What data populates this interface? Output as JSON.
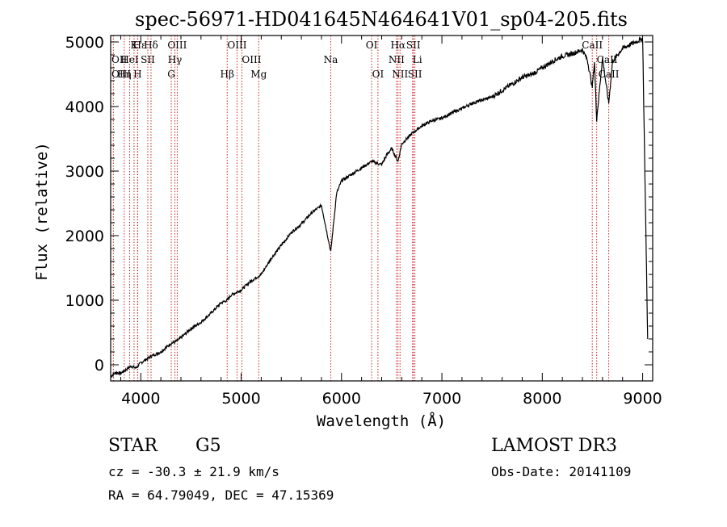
{
  "chart_data": {
    "type": "line",
    "title": "spec-56971-HD041645N464641V01_sp04-205.fits",
    "xlabel": "Wavelength (Å)",
    "ylabel": "Flux (relative)",
    "xlim": [
      3700,
      9100
    ],
    "ylim": [
      -250,
      5100
    ],
    "xticks": [
      4000,
      5000,
      6000,
      7000,
      8000,
      9000
    ],
    "yticks": [
      0,
      1000,
      2000,
      3000,
      4000,
      5000
    ],
    "series": [
      {
        "name": "flux",
        "x": [
          3700,
          3750,
          3800,
          3850,
          3900,
          3950,
          4000,
          4100,
          4200,
          4300,
          4350,
          4400,
          4500,
          4600,
          4700,
          4800,
          4861,
          4900,
          5000,
          5100,
          5200,
          5300,
          5400,
          5500,
          5600,
          5700,
          5800,
          5893,
          5950,
          6000,
          6100,
          6200,
          6300,
          6400,
          6450,
          6500,
          6563,
          6600,
          6700,
          6800,
          6900,
          7000,
          7100,
          7200,
          7300,
          7400,
          7500,
          7600,
          7700,
          7800,
          7900,
          8000,
          8100,
          8200,
          8300,
          8400,
          8450,
          8498,
          8520,
          8542,
          8600,
          8662,
          8700,
          8800,
          8900,
          9000,
          9050
        ],
        "y": [
          -180,
          -120,
          -130,
          -80,
          -20,
          -50,
          30,
          130,
          200,
          330,
          360,
          420,
          560,
          660,
          800,
          960,
          1000,
          1080,
          1160,
          1300,
          1400,
          1650,
          1850,
          2050,
          2180,
          2350,
          2470,
          1750,
          2650,
          2850,
          2950,
          3050,
          3150,
          3100,
          3250,
          3350,
          3150,
          3420,
          3580,
          3700,
          3780,
          3820,
          3900,
          3970,
          4050,
          4100,
          4150,
          4250,
          4350,
          4450,
          4500,
          4600,
          4700,
          4780,
          4820,
          4880,
          4720,
          4300,
          4700,
          3800,
          4750,
          4050,
          4700,
          4900,
          4980,
          5050,
          400
        ]
      }
    ],
    "lines": [
      {
        "name": "Hε",
        "x": 3970,
        "row": 1,
        "pos": "left"
      },
      {
        "name": "K",
        "x": 3933,
        "row": 1,
        "pos": "center"
      },
      {
        "name": "Hδ",
        "x": 4102,
        "row": 1,
        "pos": "center"
      },
      {
        "name": "OIII",
        "x": 4363,
        "row": 1,
        "pos": "center"
      },
      {
        "name": "OIII",
        "x": 4959,
        "row": 1,
        "pos": "center"
      },
      {
        "name": "OI",
        "x": 6300,
        "row": 1,
        "pos": "center"
      },
      {
        "name": "Hα",
        "x": 6563,
        "row": 1,
        "pos": "center"
      },
      {
        "name": "SII",
        "x": 6716,
        "row": 1,
        "pos": "center"
      },
      {
        "name": "CaII",
        "x": 8498,
        "row": 1,
        "pos": "center"
      },
      {
        "name": "OII",
        "x": 3727,
        "row": 2,
        "pos": "left"
      },
      {
        "name": "HeI",
        "x": 3889,
        "row": 2,
        "pos": "center"
      },
      {
        "name": "SII",
        "x": 4070,
        "row": 2,
        "pos": "center"
      },
      {
        "name": "Hγ",
        "x": 4340,
        "row": 2,
        "pos": "center"
      },
      {
        "name": "OIII",
        "x": 5007,
        "row": 2,
        "pos": "right"
      },
      {
        "name": "Na",
        "x": 5893,
        "row": 2,
        "pos": "center"
      },
      {
        "name": "NII",
        "x": 6548,
        "row": 2,
        "pos": "center"
      },
      {
        "name": "Li",
        "x": 6708,
        "row": 2,
        "pos": "right"
      },
      {
        "name": "CaII",
        "x": 8542,
        "row": 2,
        "pos": "right"
      },
      {
        "name": "OIII",
        "x": 3727,
        "row": 3,
        "pos": "left"
      },
      {
        "name": "Hη",
        "x": 3835,
        "row": 3,
        "pos": "center"
      },
      {
        "name": "H",
        "x": 3968,
        "row": 3,
        "pos": "center"
      },
      {
        "name": "G",
        "x": 4304,
        "row": 3,
        "pos": "center"
      },
      {
        "name": "Hβ",
        "x": 4861,
        "row": 3,
        "pos": "center"
      },
      {
        "name": "Mg",
        "x": 5175,
        "row": 3,
        "pos": "center"
      },
      {
        "name": "OI",
        "x": 6363,
        "row": 3,
        "pos": "center"
      },
      {
        "name": "NII",
        "x": 6583,
        "row": 3,
        "pos": "center"
      },
      {
        "name": "SII",
        "x": 6731,
        "row": 3,
        "pos": "center"
      },
      {
        "name": "CaII",
        "x": 8662,
        "row": 3,
        "pos": "center"
      }
    ],
    "line_color": "#cc2222"
  },
  "info": {
    "class": "STAR",
    "subclass": "G5",
    "survey": "LAMOST DR3",
    "cz": "cz = -30.3 ± 21.9 km/s",
    "obs_date": "Obs-Date: 20141109",
    "coords": "RA =  64.79049, DEC =  47.15369"
  }
}
